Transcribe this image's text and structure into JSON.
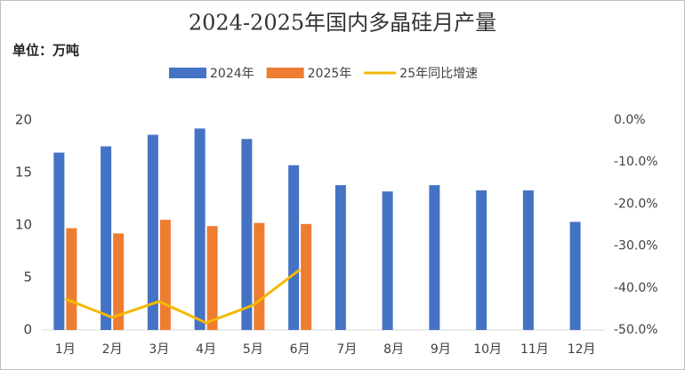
{
  "chart_data": {
    "type": "bar-line",
    "title": "2024-2025年国内多晶硅月产量",
    "unit_label": "单位：万吨",
    "categories": [
      "1月",
      "2月",
      "3月",
      "4月",
      "5月",
      "6月",
      "7月",
      "8月",
      "9月",
      "10月",
      "11月",
      "12月"
    ],
    "series": [
      {
        "name": "2024年",
        "color": "#4472c4",
        "type": "bar",
        "values": [
          16.9,
          17.5,
          18.6,
          19.2,
          18.2,
          15.7,
          13.8,
          13.2,
          13.8,
          13.3,
          13.3,
          10.3
        ]
      },
      {
        "name": "2025年",
        "color": "#ed7d31",
        "type": "bar",
        "values": [
          9.7,
          9.2,
          10.5,
          9.9,
          10.2,
          10.1,
          null,
          null,
          null,
          null,
          null,
          null
        ]
      },
      {
        "name": "25年同比增速",
        "color": "#f5b800",
        "type": "line",
        "axis": "y2",
        "values": [
          -42.6,
          -47.0,
          -43.2,
          -48.3,
          -44.1,
          -35.6,
          null,
          null,
          null,
          null,
          null,
          null
        ]
      }
    ],
    "ylim": [
      0,
      20
    ],
    "yticks": [
      0,
      5,
      10,
      15,
      20
    ],
    "y2lim": [
      -50,
      0
    ],
    "y2ticks": [
      {
        "value": 0,
        "label": "0.0%"
      },
      {
        "value": -10,
        "label": "-10.0%"
      },
      {
        "value": -20,
        "label": "-20.0%"
      },
      {
        "value": -30,
        "label": "-30.0%"
      },
      {
        "value": -40,
        "label": "-40.0%"
      },
      {
        "value": -50,
        "label": "-50.0%"
      }
    ]
  }
}
